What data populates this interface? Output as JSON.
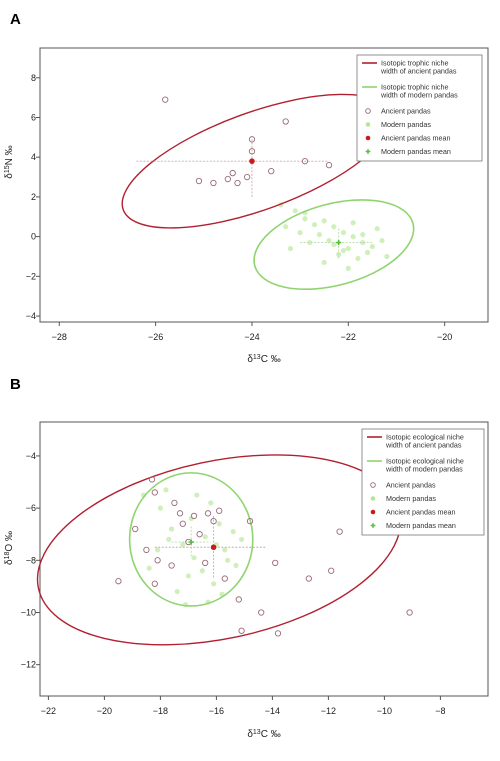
{
  "chart_data": [
    {
      "panel": "A",
      "type": "scatter",
      "xlabel_prefix": "δ",
      "xlabel_sup": "13",
      "xlabel_suffix": "C ‰",
      "ylabel_prefix": "δ",
      "ylabel_sup": "15",
      "ylabel_suffix": "N ‰",
      "xlim": [
        -28.4,
        -19.1
      ],
      "ylim": [
        -4.3,
        9.5
      ],
      "xticks": [
        -28,
        -26,
        -24,
        -22,
        -20
      ],
      "yticks": [
        -4,
        -2,
        0,
        2,
        4,
        6,
        8
      ],
      "legend_position": "top-right",
      "legend": [
        {
          "text": [
            "Isotopic trophic niche",
            "width of ancient pandas"
          ],
          "kind": "line",
          "color": "#b22030"
        },
        {
          "text": [
            "Isotopic trophic niche",
            "width of modern pandas"
          ],
          "kind": "line",
          "color": "#8fd46e"
        },
        {
          "text": [
            "Ancient pandas"
          ],
          "kind": "open-circle",
          "color": "#9a6a78"
        },
        {
          "text": [
            "Modern pandas"
          ],
          "kind": "dot",
          "color": "#b5e59a"
        },
        {
          "text": [
            "Ancient pandas mean"
          ],
          "kind": "mean",
          "color": "#cc1a1a"
        },
        {
          "text": [
            "Modern pandas mean"
          ],
          "kind": "mean",
          "color": "#55c040"
        }
      ],
      "ellipses": [
        {
          "name": "Isotopic trophic niche width of ancient pandas",
          "color": "#b22030",
          "center": [
            -23.9,
            3.8
          ],
          "rx": 2.95,
          "ry": 2.45,
          "angle_deg": -20
        },
        {
          "name": "Isotopic trophic niche width of modern pandas",
          "color": "#8fd46e",
          "center": [
            -22.3,
            -0.4
          ],
          "rx": 1.7,
          "ry": 2.05,
          "angle_deg": -15
        }
      ],
      "series": [
        {
          "name": "Ancient pandas",
          "points": [
            [
              -25.8,
              6.9
            ],
            [
              -23.3,
              5.8
            ],
            [
              -24.0,
              4.9
            ],
            [
              -24.0,
              4.3
            ],
            [
              -24.4,
              3.2
            ],
            [
              -24.5,
              2.9
            ],
            [
              -24.8,
              2.7
            ],
            [
              -24.3,
              2.7
            ],
            [
              -23.6,
              3.3
            ],
            [
              -22.9,
              3.8
            ],
            [
              -22.4,
              3.6
            ],
            [
              -25.1,
              2.8
            ],
            [
              -24.1,
              3.0
            ]
          ]
        },
        {
          "name": "Modern pandas",
          "points": [
            [
              -23.4,
              1.6
            ],
            [
              -23.1,
              1.3
            ],
            [
              -22.9,
              0.9
            ],
            [
              -22.7,
              0.6
            ],
            [
              -22.5,
              0.8
            ],
            [
              -22.3,
              0.5
            ],
            [
              -22.1,
              0.2
            ],
            [
              -21.9,
              0.0
            ],
            [
              -21.7,
              -0.3
            ],
            [
              -21.5,
              -0.5
            ],
            [
              -21.3,
              -0.2
            ],
            [
              -22.0,
              -0.6
            ],
            [
              -22.2,
              -0.9
            ],
            [
              -22.4,
              -0.2
            ],
            [
              -22.6,
              0.1
            ],
            [
              -22.8,
              -0.3
            ],
            [
              -23.0,
              0.2
            ],
            [
              -23.2,
              -0.6
            ],
            [
              -21.8,
              -1.1
            ],
            [
              -21.6,
              -0.8
            ],
            [
              -22.5,
              -1.3
            ],
            [
              -22.0,
              -1.6
            ],
            [
              -21.4,
              0.4
            ],
            [
              -21.2,
              -1.0
            ],
            [
              -22.9,
              1.2
            ],
            [
              -23.3,
              0.5
            ],
            [
              -21.9,
              0.7
            ],
            [
              -22.3,
              -0.4
            ],
            [
              -22.1,
              -0.7
            ],
            [
              -21.7,
              0.1
            ]
          ]
        }
      ],
      "means": [
        {
          "name": "Ancient pandas mean",
          "x": -24.0,
          "y": 3.8,
          "x_range": [
            -26.4,
            -22.4
          ],
          "y_range": [
            2.0,
            4.9
          ],
          "color": "#cc1a1a"
        },
        {
          "name": "Modern pandas mean",
          "x": -22.2,
          "y": -0.3,
          "x_range": [
            -23.0,
            -21.5
          ],
          "y_range": [
            -1.1,
            0.5
          ],
          "color": "#55c040"
        }
      ]
    },
    {
      "panel": "B",
      "type": "scatter",
      "xlabel_prefix": "δ",
      "xlabel_sup": "13",
      "xlabel_suffix": "C ‰",
      "ylabel_prefix": "δ",
      "ylabel_sup": "18",
      "ylabel_suffix": "O ‰",
      "xlim": [
        -22.3,
        -6.3
      ],
      "ylim": [
        -13.2,
        -2.7
      ],
      "xticks": [
        -22,
        -20,
        -18,
        -16,
        -14,
        -12,
        -10,
        -8
      ],
      "yticks": [
        -12,
        -10,
        -8,
        -6,
        -4
      ],
      "legend_position": "top-right",
      "legend": [
        {
          "text": [
            "Isotopic ecological niche",
            "width of ancient pandas"
          ],
          "kind": "line",
          "color": "#b22030"
        },
        {
          "text": [
            "Isotopic ecological niche",
            "width of modern pandas"
          ],
          "kind": "line",
          "color": "#8fd46e"
        },
        {
          "text": [
            "Ancient pandas"
          ],
          "kind": "open-circle",
          "color": "#9a6a78"
        },
        {
          "text": [
            "Modern pandas"
          ],
          "kind": "dot",
          "color": "#b5e59a"
        },
        {
          "text": [
            "Ancient pandas mean"
          ],
          "kind": "mean",
          "color": "#cc1a1a"
        },
        {
          "text": [
            "Modern pandas mean"
          ],
          "kind": "mean",
          "color": "#55c040"
        }
      ],
      "ellipses": [
        {
          "name": "Isotopic ecological niche width of ancient pandas",
          "color": "#b22030",
          "center": [
            -15.9,
            -7.6
          ],
          "rx": 6.6,
          "ry": 3.4,
          "angle_deg": -12
        },
        {
          "name": "Isotopic ecological niche width of modern pandas",
          "color": "#8fd46e",
          "center": [
            -16.9,
            -7.2
          ],
          "rx": 2.2,
          "ry": 2.55,
          "angle_deg": 0
        }
      ],
      "series": [
        {
          "name": "Ancient pandas",
          "points": [
            [
              -18.3,
              -4.9
            ],
            [
              -18.2,
              -5.4
            ],
            [
              -17.5,
              -5.8
            ],
            [
              -17.3,
              -6.2
            ],
            [
              -17.2,
              -6.6
            ],
            [
              -16.8,
              -6.3
            ],
            [
              -16.3,
              -6.2
            ],
            [
              -16.1,
              -6.5
            ],
            [
              -15.9,
              -6.1
            ],
            [
              -14.8,
              -6.5
            ],
            [
              -18.9,
              -6.8
            ],
            [
              -18.5,
              -7.6
            ],
            [
              -18.1,
              -8.0
            ],
            [
              -17.6,
              -8.2
            ],
            [
              -18.2,
              -8.9
            ],
            [
              -16.4,
              -8.1
            ],
            [
              -15.7,
              -8.7
            ],
            [
              -15.2,
              -9.5
            ],
            [
              -13.9,
              -8.1
            ],
            [
              -14.4,
              -10.0
            ],
            [
              -13.8,
              -10.8
            ],
            [
              -15.1,
              -10.7
            ],
            [
              -12.7,
              -8.7
            ],
            [
              -11.9,
              -8.4
            ],
            [
              -11.6,
              -6.9
            ],
            [
              -9.1,
              -10.0
            ],
            [
              -19.5,
              -8.8
            ],
            [
              -17.0,
              -7.3
            ],
            [
              -16.6,
              -7.0
            ]
          ]
        },
        {
          "name": "Modern pandas",
          "points": [
            [
              -18.6,
              -5.5
            ],
            [
              -18.0,
              -6.0
            ],
            [
              -17.6,
              -6.8
            ],
            [
              -17.2,
              -7.4
            ],
            [
              -16.8,
              -7.9
            ],
            [
              -16.5,
              -8.4
            ],
            [
              -16.1,
              -8.9
            ],
            [
              -15.7,
              -7.6
            ],
            [
              -15.4,
              -6.9
            ],
            [
              -15.9,
              -6.6
            ],
            [
              -16.4,
              -7.1
            ],
            [
              -17.0,
              -8.6
            ],
            [
              -17.4,
              -9.2
            ],
            [
              -18.1,
              -7.6
            ],
            [
              -18.4,
              -8.3
            ],
            [
              -15.3,
              -8.2
            ],
            [
              -15.8,
              -9.3
            ],
            [
              -16.2,
              -5.8
            ],
            [
              -16.7,
              -5.5
            ],
            [
              -17.8,
              -5.3
            ],
            [
              -15.1,
              -7.2
            ],
            [
              -16.9,
              -6.4
            ],
            [
              -17.7,
              -7.2
            ],
            [
              -16.0,
              -7.4
            ],
            [
              -15.6,
              -8.0
            ],
            [
              -17.1,
              -9.7
            ],
            [
              -16.3,
              -9.6
            ]
          ]
        }
      ],
      "means": [
        {
          "name": "Ancient pandas mean",
          "x": -16.1,
          "y": -7.5,
          "x_range": [
            -18.2,
            -14.2
          ],
          "y_range": [
            -6.3,
            -8.7
          ],
          "color": "#cc1a1a"
        },
        {
          "name": "Modern pandas mean",
          "x": -16.9,
          "y": -7.3,
          "x_range": [
            -17.6,
            -16.2
          ],
          "y_range": [
            -6.7,
            -7.9
          ],
          "color": "#55c040"
        }
      ]
    }
  ]
}
